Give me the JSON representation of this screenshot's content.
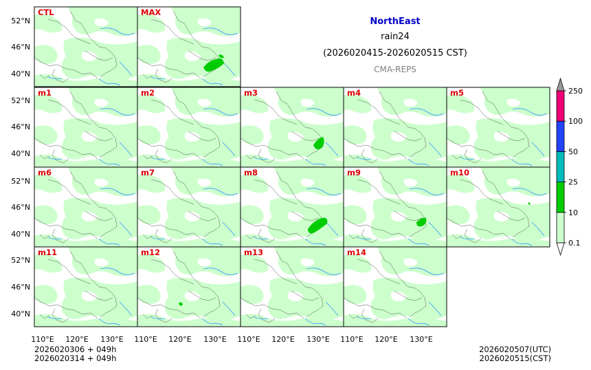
{
  "header": {
    "region": "NorthEast",
    "variable": "rain24",
    "period": "(2026020415-2026020515 CST)",
    "model": "CMA-REPS"
  },
  "footer": {
    "init_line_1": "2026020306  +  049h",
    "init_line_2": "2026020314  +  049h",
    "valid_utc": "2026020507(UTC)",
    "valid_cst": "2026020515(CST)"
  },
  "chart_data": {
    "type": "heatmap",
    "title": "rain24 NorthEast",
    "x_axis": {
      "label": "",
      "range": [
        108,
        138
      ],
      "ticks": [
        110,
        120,
        130
      ],
      "tick_labels": [
        "110°E",
        "120°E",
        "130°E"
      ]
    },
    "y_axis": {
      "label": "",
      "range": [
        37,
        54
      ],
      "ticks": [
        40,
        46,
        52
      ],
      "tick_labels": [
        "40°N",
        "46°N",
        "52°N"
      ]
    },
    "panels": [
      {
        "name": "CTL",
        "max_category": "0.1-10"
      },
      {
        "name": "MAX",
        "max_category": "10-25"
      },
      {
        "name": "m1",
        "max_category": "0.1-10"
      },
      {
        "name": "m2",
        "max_category": "0.1-10"
      },
      {
        "name": "m3",
        "max_category": "10-25"
      },
      {
        "name": "m4",
        "max_category": "0.1-10"
      },
      {
        "name": "m5",
        "max_category": "0.1-10"
      },
      {
        "name": "m6",
        "max_category": "0.1-10"
      },
      {
        "name": "m7",
        "max_category": "0.1-10"
      },
      {
        "name": "m8",
        "max_category": "10-25"
      },
      {
        "name": "m9",
        "max_category": "10-25"
      },
      {
        "name": "m10",
        "max_category": "10-25"
      },
      {
        "name": "m11",
        "max_category": "0.1-10"
      },
      {
        "name": "m12",
        "max_category": "10-25"
      },
      {
        "name": "m13",
        "max_category": "0.1-10"
      },
      {
        "name": "m14",
        "max_category": "0.1-10"
      }
    ],
    "colorbar": {
      "levels": [
        "0.1",
        "10",
        "25",
        "50",
        "100",
        "250"
      ],
      "colors": [
        "#ccffcc",
        "#00cc00",
        "#00bbbb",
        "#2244ff",
        "#ee0077",
        "#999999"
      ],
      "extend": "both"
    }
  },
  "colors": {
    "panel_label": "#dd0000",
    "light_rain": "#ccffcc",
    "moderate_rain": "#00cc00",
    "river": "#3399ff",
    "border": "#555555"
  }
}
